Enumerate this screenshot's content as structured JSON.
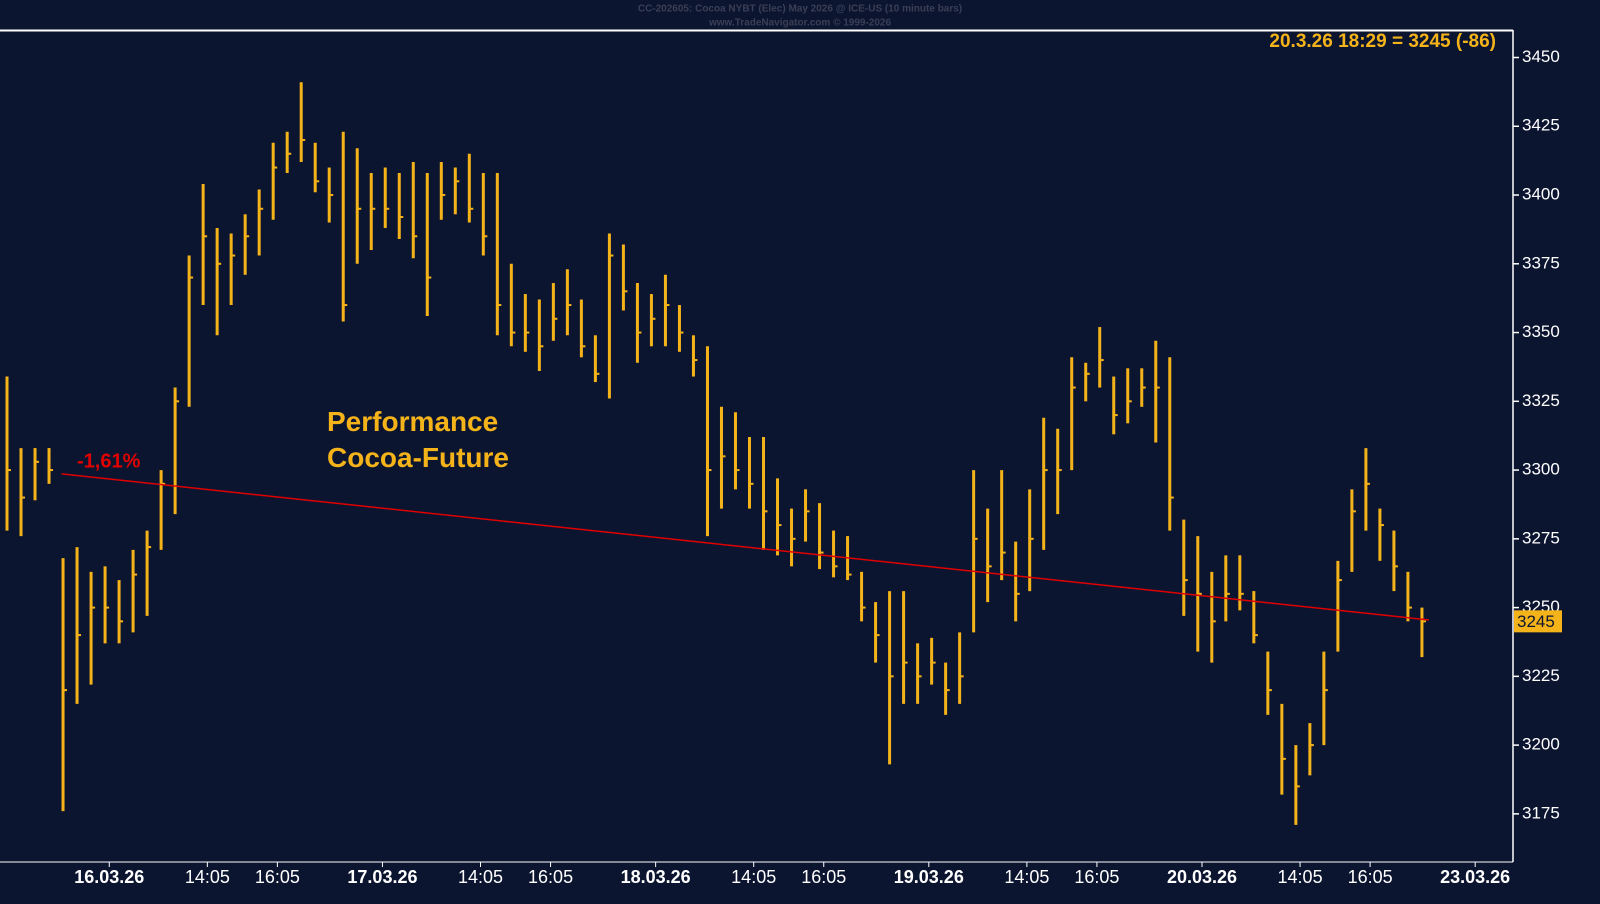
{
  "chart_data": {
    "type": "hlc",
    "title": "CC-202605: Cocoa NYBT (Elec) May 2026 @ ICE-US (10 minute bars)",
    "subtitle": "www.TradeNavigator.com © 1999-2026",
    "header": "20.3.26 18:29 = 3245 (-86)",
    "last_price": 3245,
    "annotation": "Performance Cocoa-Future",
    "trend_label": "-1,61%",
    "trendline": {
      "x": [
        4.4,
        102
      ],
      "y": [
        3298.6,
        3245.5
      ],
      "color": "#e00000"
    },
    "color": "#f5b31a",
    "high": [
      3334,
      3308,
      3308,
      3308,
      3268,
      3272,
      3263,
      3265,
      3260,
      3271,
      3278,
      3300,
      3330,
      3378,
      3404,
      3388,
      3386,
      3393,
      3402,
      3419,
      3423,
      3441,
      3419,
      3410,
      3423,
      3417,
      3408,
      3410,
      3408,
      3412,
      3408,
      3412,
      3410,
      3415,
      3408,
      3408,
      3375,
      3364,
      3362,
      3368,
      3373,
      3362,
      3349,
      3386,
      3382,
      3368,
      3364,
      3371,
      3360,
      3349,
      3345,
      3323,
      3321,
      3312,
      3312,
      3297,
      3286,
      3293,
      3288,
      3278,
      3276,
      3263,
      3252,
      3256,
      3256,
      3237,
      3239,
      3230,
      3241,
      3300,
      3286,
      3300,
      3274,
      3293,
      3319,
      3315,
      3341,
      3339,
      3352,
      3334,
      3337,
      3337,
      3347,
      3341,
      3282,
      3276,
      3263,
      3269,
      3269,
      3256,
      3234,
      3215,
      3200,
      3208,
      3234,
      3267,
      3293,
      3308,
      3286,
      3278,
      3263,
      3250
    ],
    "low": [
      3278,
      3276,
      3289,
      3295,
      3176,
      3215,
      3222,
      3237,
      3237,
      3241,
      3247,
      3271,
      3284,
      3323,
      3360,
      3349,
      3360,
      3371,
      3378,
      3391,
      3408,
      3412,
      3401,
      3390,
      3354,
      3375,
      3380,
      3388,
      3384,
      3377,
      3356,
      3391,
      3393,
      3390,
      3378,
      3349,
      3345,
      3343,
      3336,
      3347,
      3349,
      3341,
      3332,
      3326,
      3358,
      3339,
      3345,
      3345,
      3343,
      3334,
      3276,
      3286,
      3293,
      3286,
      3271,
      3269,
      3265,
      3274,
      3264,
      3261,
      3260,
      3245,
      3230,
      3193,
      3215,
      3215,
      3222,
      3211,
      3215,
      3241,
      3252,
      3260,
      3245,
      3256,
      3271,
      3284,
      3300,
      3325,
      3330,
      3313,
      3317,
      3323,
      3310,
      3278,
      3247,
      3234,
      3230,
      3245,
      3249,
      3237,
      3211,
      3182,
      3171,
      3189,
      3200,
      3234,
      3263,
      3278,
      3267,
      3256,
      3245,
      3232
    ],
    "close": [
      3300,
      3290,
      3303,
      3300,
      3220,
      3240,
      3250,
      3250,
      3245,
      3262,
      3272,
      3295,
      3325,
      3370,
      3385,
      3375,
      3378,
      3385,
      3395,
      3410,
      3415,
      3420,
      3405,
      3400,
      3360,
      3395,
      3395,
      3395,
      3392,
      3385,
      3370,
      3400,
      3405,
      3395,
      3385,
      3360,
      3350,
      3350,
      3345,
      3355,
      3360,
      3345,
      3335,
      3378,
      3365,
      3350,
      3355,
      3360,
      3350,
      3340,
      3300,
      3305,
      3300,
      3295,
      3285,
      3280,
      3275,
      3285,
      3270,
      3265,
      3262,
      3250,
      3240,
      3225,
      3230,
      3225,
      3230,
      3220,
      3225,
      3275,
      3265,
      3270,
      3255,
      3275,
      3300,
      3300,
      3330,
      3335,
      3340,
      3320,
      3325,
      3330,
      3330,
      3290,
      3260,
      3255,
      3245,
      3255,
      3255,
      3240,
      3220,
      3195,
      3185,
      3200,
      3220,
      3260,
      3285,
      3295,
      3280,
      3265,
      3250,
      3245
    ],
    "xlim": [
      0,
      108
    ],
    "xticks": [
      {
        "value": 7.8,
        "label": "16.03.26"
      },
      {
        "value": 14.8,
        "label": "14:05"
      },
      {
        "value": 19.8,
        "label": "16:05"
      },
      {
        "value": 27.3,
        "label": "17.03.26"
      },
      {
        "value": 34.3,
        "label": "14:05"
      },
      {
        "value": 39.3,
        "label": "16:05"
      },
      {
        "value": 46.8,
        "label": "18.03.26"
      },
      {
        "value": 53.8,
        "label": "14:05"
      },
      {
        "value": 58.8,
        "label": "16:05"
      },
      {
        "value": 66.3,
        "label": "19.03.26"
      },
      {
        "value": 73.3,
        "label": "14:05"
      },
      {
        "value": 78.3,
        "label": "16:05"
      },
      {
        "value": 85.8,
        "label": "20.03.26"
      },
      {
        "value": 92.8,
        "label": "14:05"
      },
      {
        "value": 97.8,
        "label": "16:05"
      },
      {
        "value": 105.3,
        "label": "23.03.26"
      }
    ],
    "ylim": [
      3157.5,
      3460
    ],
    "yticks": [
      3175,
      3200,
      3225,
      3250,
      3275,
      3300,
      3325,
      3350,
      3375,
      3400,
      3425,
      3450
    ]
  }
}
